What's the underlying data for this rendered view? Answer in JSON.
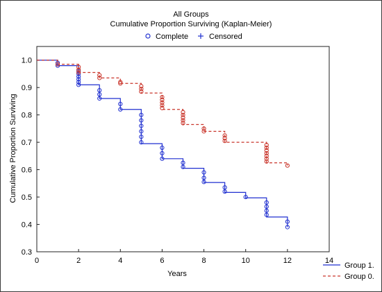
{
  "chart_data": {
    "type": "line",
    "title": "All Groups",
    "subtitle": "Cumulative Proportion Surviving (Kaplan-Meier)",
    "xlabel": "Years",
    "ylabel": "Cumulative Proportion Surviving",
    "xlim": [
      0,
      14
    ],
    "ylim": [
      0.3,
      1.05
    ],
    "x_ticks": [
      "0",
      "2",
      "4",
      "6",
      "8",
      "10",
      "12",
      "14"
    ],
    "y_ticks": [
      "0.3",
      "0.4",
      "0.5",
      "0.6",
      "0.7",
      "0.8",
      "0.9",
      "1.0"
    ],
    "grid": false,
    "marker_legend": [
      {
        "label": "Complete",
        "marker": "circle-open"
      },
      {
        "label": "Censored",
        "marker": "plus"
      }
    ],
    "series": [
      {
        "name": "Group 1.",
        "color": "#1f2fd0",
        "line_style": "solid",
        "steps": [
          {
            "x": 0,
            "y": 1.0
          },
          {
            "x": 1,
            "y": 0.98
          },
          {
            "x": 2,
            "y": 0.91
          },
          {
            "x": 3,
            "y": 0.86
          },
          {
            "x": 4,
            "y": 0.82
          },
          {
            "x": 5,
            "y": 0.695
          },
          {
            "x": 6,
            "y": 0.64
          },
          {
            "x": 7,
            "y": 0.605
          },
          {
            "x": 8,
            "y": 0.553
          },
          {
            "x": 9,
            "y": 0.517
          },
          {
            "x": 10,
            "y": 0.497
          },
          {
            "x": 11,
            "y": 0.427
          },
          {
            "x": 12,
            "y": 0.39
          }
        ],
        "event_marks": [
          {
            "x": 1,
            "y": [
              0.99,
              0.98
            ]
          },
          {
            "x": 2,
            "y": [
              0.96,
              0.95,
              0.94,
              0.93,
              0.92,
              0.91
            ]
          },
          {
            "x": 3,
            "y": [
              0.89,
              0.875,
              0.86
            ]
          },
          {
            "x": 4,
            "y": [
              0.84,
              0.82
            ]
          },
          {
            "x": 5,
            "y": [
              0.8,
              0.78,
              0.76,
              0.74,
              0.72,
              0.7
            ]
          },
          {
            "x": 6,
            "y": [
              0.68,
              0.66,
              0.64
            ]
          },
          {
            "x": 7,
            "y": [
              0.625,
              0.61
            ]
          },
          {
            "x": 8,
            "y": [
              0.59,
              0.57,
              0.555
            ]
          },
          {
            "x": 9,
            "y": [
              0.535,
              0.52
            ]
          },
          {
            "x": 10,
            "y": [
              0.5
            ]
          },
          {
            "x": 11,
            "y": [
              0.48,
              0.465,
              0.45,
              0.435
            ]
          },
          {
            "x": 12,
            "y": [
              0.41,
              0.39
            ]
          }
        ]
      },
      {
        "name": "Group 0.",
        "color": "#c9342a",
        "line_style": "dashed",
        "steps": [
          {
            "x": 0,
            "y": 1.0
          },
          {
            "x": 1,
            "y": 0.985
          },
          {
            "x": 2,
            "y": 0.955
          },
          {
            "x": 3,
            "y": 0.935
          },
          {
            "x": 4,
            "y": 0.915
          },
          {
            "x": 5,
            "y": 0.88
          },
          {
            "x": 6,
            "y": 0.82
          },
          {
            "x": 7,
            "y": 0.765
          },
          {
            "x": 8,
            "y": 0.74
          },
          {
            "x": 9,
            "y": 0.7
          },
          {
            "x": 10,
            "y": 0.7
          },
          {
            "x": 11,
            "y": 0.625
          },
          {
            "x": 12,
            "y": 0.615
          }
        ],
        "event_marks": [
          {
            "x": 1,
            "y": [
              0.985
            ]
          },
          {
            "x": 2,
            "y": [
              0.975,
              0.965,
              0.955
            ]
          },
          {
            "x": 3,
            "y": [
              0.945,
              0.935
            ]
          },
          {
            "x": 4,
            "y": [
              0.92,
              0.915
            ]
          },
          {
            "x": 5,
            "y": [
              0.905,
              0.895,
              0.885
            ]
          },
          {
            "x": 6,
            "y": [
              0.865,
              0.855,
              0.845,
              0.835,
              0.825
            ]
          },
          {
            "x": 7,
            "y": [
              0.81,
              0.8,
              0.79,
              0.78,
              0.77
            ]
          },
          {
            "x": 8,
            "y": [
              0.75,
              0.74
            ]
          },
          {
            "x": 9,
            "y": [
              0.725,
              0.715,
              0.705
            ]
          },
          {
            "x": 11,
            "y": [
              0.69,
              0.68,
              0.67,
              0.66,
              0.65,
              0.64,
              0.63
            ]
          },
          {
            "x": 12,
            "y": [
              0.615
            ]
          }
        ]
      }
    ]
  }
}
